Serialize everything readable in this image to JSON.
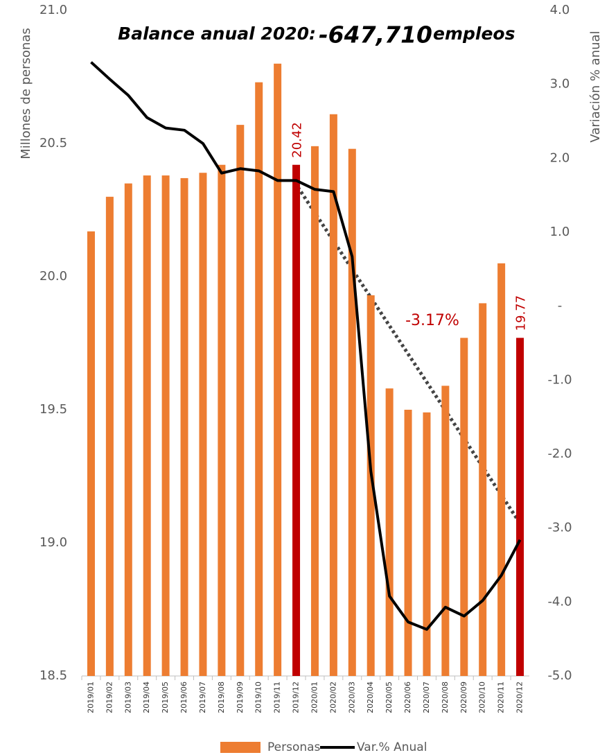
{
  "chart_data": {
    "type": "bar",
    "title": {
      "text": "Balance anual 2020:",
      "number": "-647,710",
      "unit": "empleos"
    },
    "y_label": "Millones de personas",
    "y2_label": "Variación % anual",
    "annotation": "-3.17%",
    "categories": [
      "2019/01",
      "2019/02",
      "2019/03",
      "2019/04",
      "2019/05",
      "2019/06",
      "2019/07",
      "2019/08",
      "2019/09",
      "2019/10",
      "2019/11",
      "2019/12",
      "2020/01",
      "2020/02",
      "2020/03",
      "2020/04",
      "2020/05",
      "2020/06",
      "2020/07",
      "2020/08",
      "2020/09",
      "2020/10",
      "2020/11",
      "2020/12"
    ],
    "series": [
      {
        "name": "Personas",
        "type": "bar",
        "color": "#ED7D31",
        "colors": [
          "#ED7D31",
          "#ED7D31",
          "#ED7D31",
          "#ED7D31",
          "#ED7D31",
          "#ED7D31",
          "#ED7D31",
          "#ED7D31",
          "#ED7D31",
          "#ED7D31",
          "#ED7D31",
          "#C00000",
          "#ED7D31",
          "#ED7D31",
          "#ED7D31",
          "#ED7D31",
          "#ED7D31",
          "#ED7D31",
          "#ED7D31",
          "#ED7D31",
          "#ED7D31",
          "#ED7D31",
          "#ED7D31",
          "#C00000"
        ],
        "values": [
          20.17,
          20.3,
          20.35,
          20.38,
          20.38,
          20.37,
          20.39,
          20.42,
          20.57,
          20.73,
          20.8,
          20.42,
          20.49,
          20.61,
          20.48,
          19.93,
          19.58,
          19.5,
          19.49,
          19.59,
          19.77,
          19.9,
          20.05,
          19.77
        ],
        "value_labels": [
          null,
          null,
          null,
          null,
          null,
          null,
          null,
          null,
          null,
          null,
          null,
          "20.42",
          null,
          null,
          null,
          null,
          null,
          null,
          null,
          null,
          null,
          null,
          null,
          "19.77"
        ]
      },
      {
        "name": "Var.% Anual",
        "type": "line",
        "color": "#000000",
        "axis": "y2",
        "values": [
          3.3,
          3.07,
          2.85,
          2.55,
          2.41,
          2.38,
          2.2,
          1.8,
          1.86,
          1.83,
          1.7,
          1.7,
          1.58,
          1.55,
          0.67,
          -2.23,
          -3.92,
          -4.27,
          -4.37,
          -4.07,
          -4.19,
          -3.98,
          -3.64,
          -3.16
        ]
      }
    ],
    "ylim": [
      18.5,
      21.0
    ],
    "yticks": [
      {
        "value": 18.5,
        "label": "18.5"
      },
      {
        "value": 19,
        "label": "19.0"
      },
      {
        "value": 19.5,
        "label": "19.5"
      },
      {
        "value": 20,
        "label": "20.0"
      },
      {
        "value": 20.5,
        "label": "20.5"
      },
      {
        "value": 21,
        "label": "21.0"
      }
    ],
    "y2lim": [
      -5,
      4
    ],
    "y2ticks": [
      {
        "value": -5,
        "label": "-5.0"
      },
      {
        "value": -4,
        "label": "-4.0"
      },
      {
        "value": -3,
        "label": "-3.0"
      },
      {
        "value": -2,
        "label": "-2.0"
      },
      {
        "value": -1,
        "label": "-1.0"
      },
      {
        "value": 0,
        "label": "-"
      },
      {
        "value": 1,
        "label": "1.0"
      },
      {
        "value": 2,
        "label": "2.0"
      },
      {
        "value": 3,
        "label": "3.0"
      },
      {
        "value": 4,
        "label": "4.0"
      }
    ],
    "grid": false,
    "legend": "bottom"
  }
}
